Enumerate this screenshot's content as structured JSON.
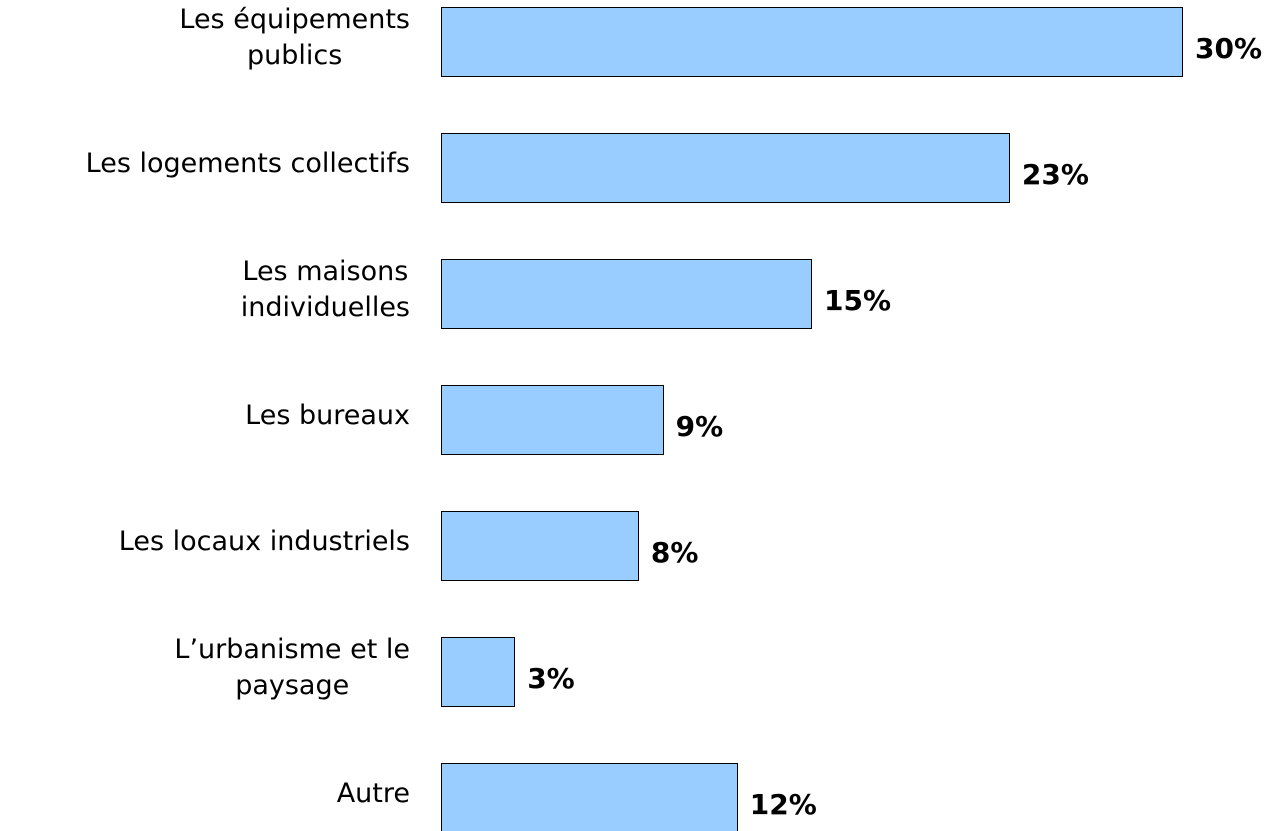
{
  "chart_data": {
    "type": "bar",
    "orientation": "horizontal",
    "categories": [
      "Les équipements\npublics",
      "Les logements collectifs",
      "Les maisons\nindividuelles",
      "Les bureaux",
      "Les locaux industriels",
      "L’urbanisme et le\npaysage",
      "Autre"
    ],
    "values": [
      30,
      23,
      15,
      9,
      8,
      3,
      12
    ],
    "value_labels": [
      "30%",
      "23%",
      "15%",
      "9%",
      "8%",
      "3%",
      "12%"
    ],
    "color": "#99ccff"
  }
}
